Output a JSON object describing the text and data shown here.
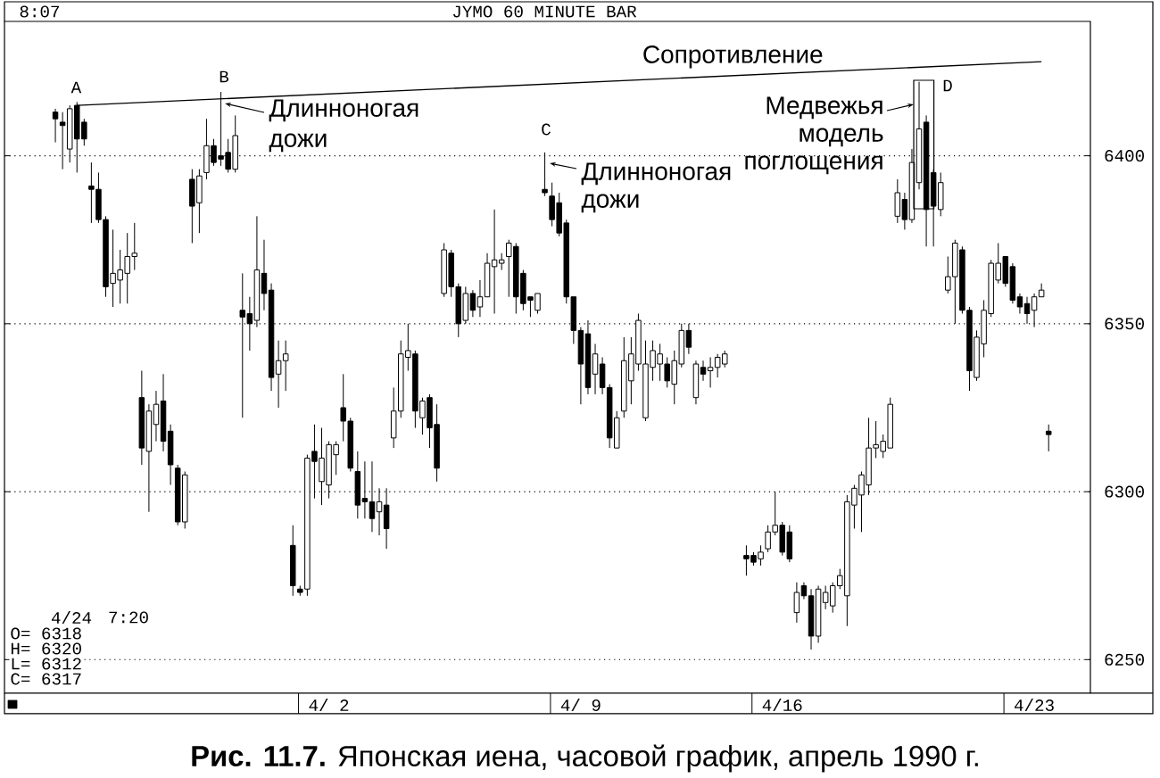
{
  "chart_data": {
    "type": "candlestick",
    "title": "JYMO 60 MINUTE BAR",
    "categories": [
      null,
      null,
      null,
      null,
      null,
      null,
      null,
      null,
      null,
      null,
      null,
      null,
      null,
      null,
      null,
      null,
      null,
      null,
      null,
      null,
      null,
      null,
      null,
      null,
      null,
      null,
      null,
      null,
      null,
      null,
      null,
      null,
      null,
      null,
      null,
      null,
      null,
      null,
      null,
      null,
      "4/ 2",
      null,
      null,
      null,
      null,
      null,
      null,
      null,
      null,
      null,
      null,
      null,
      null,
      null,
      null,
      null,
      null,
      null,
      null,
      null,
      null,
      null,
      null,
      null,
      null,
      null,
      null,
      null,
      null,
      null,
      null,
      null,
      null,
      null,
      null,
      "4/ 9",
      null,
      null,
      null,
      null,
      null,
      null,
      null,
      null,
      null,
      null,
      null,
      null,
      null,
      null,
      null,
      null,
      null,
      null,
      null,
      null,
      null,
      null,
      null,
      null,
      null,
      null,
      null,
      "4/16",
      null,
      null,
      null,
      null,
      null,
      null,
      null,
      null,
      null,
      null,
      null,
      null,
      null,
      null,
      null,
      null,
      null,
      null,
      null,
      null,
      null,
      null,
      null,
      null,
      null,
      null,
      null,
      null,
      null,
      null,
      null,
      null,
      null,
      null,
      "4/23",
      null,
      null
    ],
    "ohlc": [
      null,
      null,
      [
        6413,
        6414,
        6404,
        6411
      ],
      [
        6410,
        6413,
        6396,
        6409
      ],
      [
        6402,
        6415,
        6398,
        6414
      ],
      [
        6415,
        6416,
        6395,
        6405
      ],
      [
        6410,
        6411,
        6403,
        6405
      ],
      [
        6391,
        6398,
        6380,
        6390
      ],
      [
        6390,
        6395,
        6380,
        6381
      ],
      [
        6381,
        6382,
        6358,
        6361
      ],
      [
        6362,
        6378,
        6355,
        6365
      ],
      [
        6363,
        6372,
        6356,
        6366
      ],
      [
        6365,
        6377,
        6356,
        6370
      ],
      [
        6370,
        6380,
        6366,
        6371
      ],
      [
        6328,
        6336,
        6308,
        6313
      ],
      [
        6312,
        6326,
        6294,
        6324
      ],
      [
        6320,
        6330,
        6315,
        6326
      ],
      [
        6327,
        6335,
        6312,
        6315
      ],
      [
        6318,
        6320,
        6302,
        6308
      ],
      [
        6307,
        6308,
        6290,
        6291
      ],
      [
        6291,
        6306,
        6289,
        6305
      ],
      [
        6393,
        6396,
        6374,
        6385
      ],
      [
        6386,
        6396,
        6377,
        6394
      ],
      [
        6395,
        6411,
        6393,
        6403
      ],
      [
        6403,
        6405,
        6397,
        6398
      ],
      [
        6400,
        6419,
        6397,
        6399
      ],
      [
        6401,
        6405,
        6395,
        6396
      ],
      [
        6396,
        6412,
        6395,
        6406
      ],
      [
        6354,
        6365,
        6322,
        6352
      ],
      [
        6353,
        6358,
        6342,
        6350
      ],
      [
        6351,
        6382,
        6349,
        6366
      ],
      [
        6365,
        6375,
        6354,
        6359
      ],
      [
        6360,
        6362,
        6330,
        6334
      ],
      [
        6335,
        6345,
        6325,
        6339
      ],
      [
        6339,
        6345,
        6330,
        6341
      ],
      [
        6284,
        6290,
        6269,
        6272
      ],
      [
        6271,
        6272,
        6269,
        6270
      ],
      [
        6271,
        6311,
        6269,
        6310
      ],
      [
        6312,
        6320,
        6298,
        6309
      ],
      [
        6303,
        6319,
        6296,
        6310
      ],
      [
        6302,
        6315,
        6298,
        6314
      ],
      [
        6311,
        6315,
        6305,
        6314
      ],
      [
        6325,
        6335,
        6315,
        6321
      ],
      [
        6321,
        6322,
        6306,
        6307
      ],
      [
        6306,
        6312,
        6292,
        6296
      ],
      [
        6298,
        6309,
        6292,
        6297
      ],
      [
        6297,
        6309,
        6288,
        6292
      ],
      [
        6294,
        6301,
        6287,
        6297
      ],
      [
        6296,
        6301,
        6283,
        6289
      ],
      [
        6316,
        6331,
        6313,
        6324
      ],
      [
        6324,
        6345,
        6322,
        6341
      ],
      [
        6340,
        6350,
        6336,
        6342
      ],
      [
        6341,
        6342,
        6319,
        6324
      ],
      [
        6322,
        6328,
        6317,
        6327
      ],
      [
        6328,
        6329,
        6313,
        6319
      ],
      [
        6320,
        6326,
        6303,
        6307
      ],
      [
        6359,
        6374,
        6358,
        6372
      ],
      [
        6371,
        6372,
        6358,
        6361
      ],
      [
        6361,
        6362,
        6346,
        6350
      ],
      [
        6351,
        6361,
        6350,
        6359
      ],
      [
        6359,
        6360,
        6352,
        6354
      ],
      [
        6355,
        6363,
        6352,
        6358
      ],
      [
        6358,
        6371,
        6358,
        6368
      ],
      [
        6367,
        6384,
        6353,
        6369
      ],
      [
        6368,
        6371,
        6366,
        6369
      ],
      [
        6370,
        6375,
        6358,
        6374
      ],
      [
        6373,
        6374,
        6353,
        6358
      ],
      [
        6365,
        6366,
        6354,
        6356
      ],
      [
        6358,
        6358,
        6352,
        6357
      ],
      [
        6354,
        6359,
        6353,
        6359
      ],
      [
        6390,
        6401,
        6388,
        6389
      ],
      [
        6388,
        6392,
        6379,
        6381
      ],
      [
        6386,
        6389,
        6376,
        6377
      ],
      [
        6380,
        6381,
        6356,
        6358
      ],
      [
        6358,
        6358,
        6344,
        6348
      ],
      [
        6348,
        6349,
        6326,
        6338
      ],
      [
        6347,
        6351,
        6329,
        6331
      ],
      [
        6335,
        6344,
        6329,
        6341
      ],
      [
        6338,
        6340,
        6329,
        6331
      ],
      [
        6331,
        6332,
        6313,
        6316
      ],
      [
        6313,
        6324,
        6313,
        6322
      ],
      [
        6324,
        6346,
        6322,
        6339
      ],
      [
        6333,
        6346,
        6326,
        6341
      ],
      [
        6338,
        6353,
        6336,
        6351
      ],
      [
        6322,
        6345,
        6321,
        6338
      ],
      [
        6337,
        6345,
        6333,
        6342
      ],
      [
        6338,
        6344,
        6333,
        6341
      ],
      [
        6338,
        6340,
        6331,
        6333
      ],
      [
        6332,
        6342,
        6326,
        6339
      ],
      [
        6338,
        6350,
        6337,
        6348
      ],
      [
        6348,
        6350,
        6341,
        6343
      ],
      [
        6328,
        6339,
        6326,
        6338
      ],
      [
        6337,
        6339,
        6333,
        6335
      ],
      [
        6336,
        6340,
        6331,
        6337
      ],
      [
        6337,
        6341,
        6334,
        6340
      ],
      [
        6338,
        6342,
        6337,
        6341
      ],
      null,
      null,
      [
        6281,
        6284,
        6275,
        6280
      ],
      [
        6281,
        6282,
        6278,
        6279
      ],
      [
        6280,
        6284,
        6278,
        6282
      ],
      [
        6283,
        6290,
        6282,
        6288
      ],
      [
        6288,
        6300,
        6287,
        6290
      ],
      [
        6290,
        6291,
        6281,
        6282
      ],
      [
        6288,
        6290,
        6279,
        6280
      ],
      [
        6264,
        6273,
        6261,
        6270
      ],
      [
        6272,
        6273,
        6268,
        6269
      ],
      [
        6269,
        6271,
        6253,
        6257
      ],
      [
        6257,
        6272,
        6255,
        6271
      ],
      [
        6267,
        6272,
        6265,
        6270
      ],
      [
        6266,
        6273,
        6264,
        6272
      ],
      [
        6272,
        6277,
        6271,
        6275
      ],
      [
        6269,
        6299,
        6260,
        6297
      ],
      [
        6296,
        6302,
        6289,
        6301
      ],
      [
        6299,
        6306,
        6288,
        6305
      ],
      [
        6302,
        6322,
        6299,
        6313
      ],
      [
        6313,
        6321,
        6310,
        6314
      ],
      [
        6312,
        6317,
        6310,
        6315
      ],
      [
        6313,
        6328,
        6313,
        6326
      ],
      [
        6382,
        6393,
        6380,
        6389
      ],
      [
        6387,
        6389,
        6378,
        6381
      ],
      [
        6381,
        6402,
        6380,
        6398
      ],
      [
        6392,
        6422,
        6390,
        6408
      ],
      [
        6410,
        6412,
        6373,
        6384
      ],
      [
        6395,
        6396,
        6373,
        6385
      ],
      [
        6384,
        6395,
        6382,
        6392
      ],
      [
        6360,
        6370,
        6359,
        6364
      ],
      [
        6364,
        6375,
        6350,
        6374
      ],
      [
        6372,
        6373,
        6353,
        6354
      ],
      [
        6354,
        6355,
        6330,
        6336
      ],
      [
        6334,
        6348,
        6333,
        6346
      ],
      [
        6344,
        6357,
        6340,
        6354
      ],
      [
        6353,
        6369,
        6352,
        6368
      ],
      [
        6363,
        6374,
        6362,
        6368
      ],
      [
        6370,
        6370,
        6361,
        6362
      ],
      [
        6367,
        6368,
        6356,
        6357
      ],
      [
        6358,
        6359,
        6353,
        6355
      ],
      [
        6356,
        6358,
        6350,
        6353
      ],
      [
        6354,
        6359,
        6349,
        6358
      ],
      [
        6358,
        6362,
        6358,
        6360
      ],
      [
        6318,
        6320,
        6312,
        6317
      ]
    ],
    "color": "#000000",
    "series": [
      {
        "name": "Сопротивление",
        "type": "line",
        "color": "#000000",
        "values": [
          null,
          null,
          null,
          null,
          null,
          6415,
          null,
          null,
          null,
          null,
          null,
          null,
          null,
          null,
          null,
          null,
          null,
          null,
          null,
          null,
          null,
          null,
          null,
          null,
          null,
          null,
          null,
          null,
          null,
          null,
          null,
          null,
          null,
          null,
          null,
          null,
          null,
          null,
          null,
          null,
          null,
          null,
          null,
          null,
          null,
          null,
          null,
          null,
          null,
          null,
          null,
          null,
          null,
          null,
          null,
          null,
          null,
          null,
          null,
          null,
          null,
          null,
          null,
          null,
          null,
          null,
          null,
          null,
          null,
          null,
          null,
          null,
          null,
          null,
          null,
          null,
          null,
          null,
          null,
          null,
          null,
          null,
          null,
          null,
          null,
          null,
          null,
          null,
          null,
          null,
          null,
          null,
          null,
          null,
          null,
          null,
          null,
          null,
          null,
          null,
          null,
          null,
          null,
          null,
          null,
          null,
          null,
          null,
          null,
          null,
          null,
          null,
          null,
          null,
          null,
          null,
          null,
          null,
          null,
          null,
          null,
          null,
          null,
          null,
          null,
          null,
          null,
          null,
          null,
          null,
          null,
          null,
          null,
          null,
          null,
          null,
          null,
          null,
          null,
          6428,
          null
        ]
      }
    ],
    "ylim": [
      6240,
      6440
    ],
    "yticks": [
      6250,
      6300,
      6350,
      6400
    ],
    "grid": "y",
    "annotations": [
      "8:07",
      "A",
      "B",
      "C",
      "D",
      "Длинноногая дожи",
      "Длинноногая дожи",
      "Медвежья модель поглощения",
      "4/24",
      "7:20",
      "O= 6318",
      "H= 6320",
      "L= 6312",
      "C= 6317",
      "**Рис. 11.7.** Японская иена, часовой график, апрель 1990 г."
    ]
  }
}
